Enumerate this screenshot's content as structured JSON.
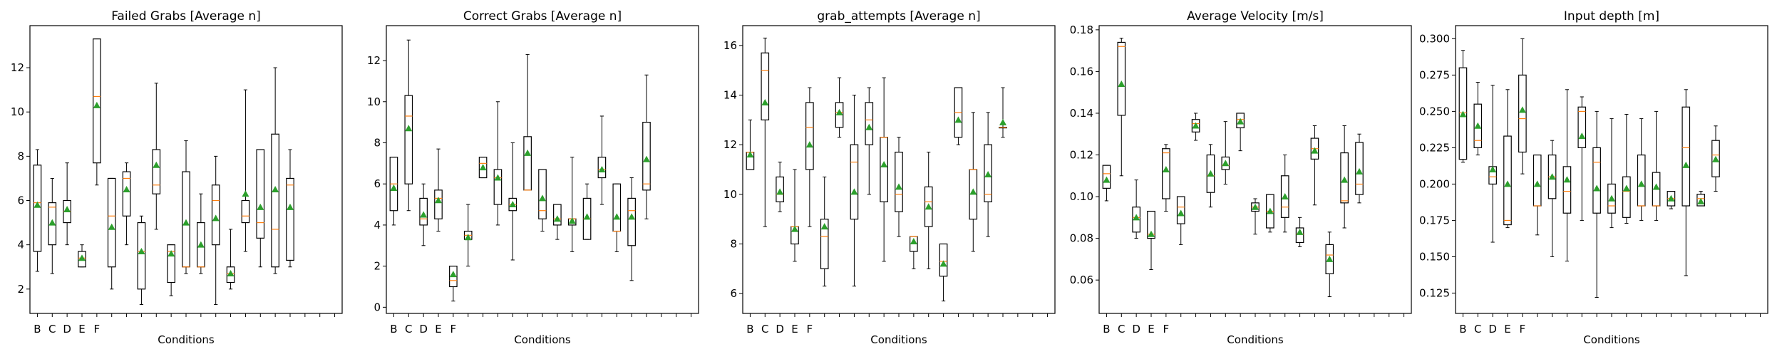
{
  "chart_data": [
    {
      "type": "box",
      "title": "Failed Grabs [Average n]",
      "xlabel": "Conditions",
      "ylabel": "",
      "ylim": [
        0.9,
        13.9
      ],
      "yticks": [
        2,
        4,
        6,
        8,
        10,
        12
      ],
      "categories": [
        "B",
        "C",
        "D",
        "E",
        "F",
        "",
        "",
        "",
        "",
        "",
        "",
        "",
        "",
        "",
        "",
        "",
        "",
        "",
        "",
        "",
        ""
      ],
      "boxes": [
        {
          "whislo": 2.8,
          "q1": 3.7,
          "med": 5.9,
          "q3": 7.6,
          "whishi": 8.3,
          "mean": 5.8
        },
        {
          "whislo": 2.7,
          "q1": 4.0,
          "med": 5.7,
          "q3": 5.9,
          "whishi": 7.0,
          "mean": 5.0
        },
        {
          "whislo": 4.0,
          "q1": 5.0,
          "med": 5.5,
          "q3": 6.0,
          "whishi": 7.7,
          "mean": 5.6
        },
        {
          "whislo": 3.0,
          "q1": 3.0,
          "med": 3.4,
          "q3": 3.7,
          "whishi": 4.0,
          "mean": 3.4
        },
        {
          "whislo": 6.7,
          "q1": 7.7,
          "med": 10.7,
          "q3": 13.3,
          "whishi": 13.3,
          "mean": 10.3
        },
        {
          "whislo": 2.0,
          "q1": 3.0,
          "med": 5.3,
          "q3": 7.0,
          "whishi": 7.0,
          "mean": 4.8
        },
        {
          "whislo": 4.0,
          "q1": 5.3,
          "med": 7.0,
          "q3": 7.3,
          "whishi": 7.7,
          "mean": 6.5
        },
        {
          "whislo": 1.3,
          "q1": 2.0,
          "med": 3.7,
          "q3": 5.0,
          "whishi": 5.3,
          "mean": 3.7
        },
        {
          "whislo": 4.7,
          "q1": 6.3,
          "med": 6.7,
          "q3": 8.3,
          "whishi": 11.3,
          "mean": 7.6
        },
        {
          "whislo": 1.7,
          "q1": 2.3,
          "med": 3.7,
          "q3": 4.0,
          "whishi": 4.0,
          "mean": 3.6
        },
        {
          "whislo": 2.7,
          "q1": 3.0,
          "med": 3.0,
          "q3": 7.3,
          "whishi": 8.7,
          "mean": 5.0
        },
        {
          "whislo": 2.7,
          "q1": 3.0,
          "med": 3.0,
          "q3": 5.0,
          "whishi": 6.3,
          "mean": 4.0
        },
        {
          "whislo": 1.3,
          "q1": 4.0,
          "med": 6.0,
          "q3": 6.7,
          "whishi": 8.0,
          "mean": 5.2
        },
        {
          "whislo": 2.0,
          "q1": 2.3,
          "med": 2.7,
          "q3": 3.0,
          "whishi": 4.7,
          "mean": 2.7
        },
        {
          "whislo": 3.7,
          "q1": 5.0,
          "med": 5.3,
          "q3": 6.0,
          "whishi": 11.0,
          "mean": 6.3
        },
        {
          "whislo": 3.0,
          "q1": 4.3,
          "med": 5.0,
          "q3": 8.3,
          "whishi": 8.3,
          "mean": 5.7
        },
        {
          "whislo": 2.7,
          "q1": 3.0,
          "med": 4.7,
          "q3": 9.0,
          "whishi": 12.0,
          "mean": 6.5
        },
        {
          "whislo": 3.0,
          "q1": 3.3,
          "med": 6.7,
          "q3": 7.0,
          "whishi": 8.3,
          "mean": 5.7
        }
      ]
    },
    {
      "type": "box",
      "title": "Correct Grabs [Average n]",
      "xlabel": "Conditions",
      "ylabel": "",
      "ylim": [
        -0.3,
        13.7
      ],
      "yticks": [
        0,
        2,
        4,
        6,
        8,
        10,
        12
      ],
      "categories": [
        "B",
        "C",
        "D",
        "E",
        "F",
        "",
        "",
        "",
        "",
        "",
        "",
        "",
        "",
        "",
        "",
        "",
        "",
        "",
        "",
        "",
        ""
      ],
      "boxes": [
        {
          "whislo": 4.0,
          "q1": 4.7,
          "med": 6.0,
          "q3": 7.3,
          "whishi": 7.3,
          "mean": 5.8
        },
        {
          "whislo": 4.7,
          "q1": 6.0,
          "med": 9.3,
          "q3": 10.3,
          "whishi": 13.0,
          "mean": 8.7
        },
        {
          "whislo": 3.0,
          "q1": 4.0,
          "med": 4.3,
          "q3": 5.3,
          "whishi": 6.0,
          "mean": 4.5
        },
        {
          "whislo": 3.7,
          "q1": 4.3,
          "med": 5.3,
          "q3": 5.7,
          "whishi": 7.7,
          "mean": 5.2
        },
        {
          "whislo": 0.3,
          "q1": 1.0,
          "med": 1.3,
          "q3": 2.0,
          "whishi": 2.0,
          "mean": 1.6
        },
        {
          "whislo": 2.0,
          "q1": 3.3,
          "med": 3.5,
          "q3": 3.7,
          "whishi": 5.0,
          "mean": 3.4
        },
        {
          "whislo": 6.3,
          "q1": 6.3,
          "med": 7.0,
          "q3": 7.3,
          "whishi": 7.3,
          "mean": 6.8
        },
        {
          "whislo": 4.0,
          "q1": 5.0,
          "med": 6.3,
          "q3": 6.7,
          "whishi": 10.0,
          "mean": 6.3
        },
        {
          "whislo": 2.3,
          "q1": 4.7,
          "med": 5.0,
          "q3": 5.3,
          "whishi": 8.0,
          "mean": 5.0
        },
        {
          "whislo": 5.7,
          "q1": 5.7,
          "med": 5.7,
          "q3": 8.3,
          "whishi": 12.3,
          "mean": 7.5
        },
        {
          "whislo": 3.7,
          "q1": 4.3,
          "med": 4.7,
          "q3": 6.7,
          "whishi": 6.7,
          "mean": 5.3
        },
        {
          "whislo": 3.3,
          "q1": 4.0,
          "med": 4.3,
          "q3": 5.0,
          "whishi": 5.0,
          "mean": 4.3
        },
        {
          "whislo": 2.7,
          "q1": 4.0,
          "med": 4.3,
          "q3": 4.3,
          "whishi": 7.3,
          "mean": 4.2
        },
        {
          "whislo": 3.3,
          "q1": 3.3,
          "med": 4.3,
          "q3": 5.3,
          "whishi": 6.0,
          "mean": 4.4
        },
        {
          "whislo": 5.0,
          "q1": 6.3,
          "med": 6.7,
          "q3": 7.3,
          "whishi": 9.3,
          "mean": 6.7
        },
        {
          "whislo": 2.7,
          "q1": 3.7,
          "med": 3.7,
          "q3": 6.0,
          "whishi": 6.0,
          "mean": 4.4
        },
        {
          "whislo": 1.3,
          "q1": 3.0,
          "med": 4.7,
          "q3": 5.3,
          "whishi": 6.3,
          "mean": 4.4
        },
        {
          "whislo": 4.3,
          "q1": 5.7,
          "med": 6.0,
          "q3": 9.0,
          "whishi": 11.3,
          "mean": 7.2
        }
      ]
    },
    {
      "type": "box",
      "title": "grab_attempts [Average n]",
      "xlabel": "Conditions",
      "ylabel": "",
      "ylim": [
        5.2,
        16.8
      ],
      "yticks": [
        6,
        8,
        10,
        12,
        14,
        16
      ],
      "categories": [
        "B",
        "C",
        "D",
        "E",
        "F",
        "",
        "",
        "",
        "",
        "",
        "",
        "",
        "",
        "",
        "",
        "",
        "",
        "",
        "",
        "",
        ""
      ],
      "boxes": [
        {
          "whislo": 11.0,
          "q1": 11.0,
          "med": 11.7,
          "q3": 11.7,
          "whishi": 13.0,
          "mean": 11.6
        },
        {
          "whislo": 8.7,
          "q1": 13.0,
          "med": 15.0,
          "q3": 15.7,
          "whishi": 16.3,
          "mean": 13.7
        },
        {
          "whislo": 9.3,
          "q1": 9.7,
          "med": 10.0,
          "q3": 10.7,
          "whishi": 11.3,
          "mean": 10.1
        },
        {
          "whislo": 7.3,
          "q1": 8.0,
          "med": 8.7,
          "q3": 8.7,
          "whishi": 11.0,
          "mean": 8.6
        },
        {
          "whislo": 8.7,
          "q1": 11.0,
          "med": 12.7,
          "q3": 13.7,
          "whishi": 14.3,
          "mean": 12.0
        },
        {
          "whislo": 6.3,
          "q1": 7.0,
          "med": 8.3,
          "q3": 9.0,
          "whishi": 10.7,
          "mean": 8.7
        },
        {
          "whislo": 12.3,
          "q1": 12.7,
          "med": 13.3,
          "q3": 13.7,
          "whishi": 14.7,
          "mean": 13.3
        },
        {
          "whislo": 6.3,
          "q1": 9.0,
          "med": 11.3,
          "q3": 12.0,
          "whishi": 14.0,
          "mean": 10.1
        },
        {
          "whislo": 10.0,
          "q1": 12.0,
          "med": 13.0,
          "q3": 13.7,
          "whishi": 14.3,
          "mean": 12.7
        },
        {
          "whislo": 7.3,
          "q1": 9.7,
          "med": 12.3,
          "q3": 12.3,
          "whishi": 14.7,
          "mean": 11.2
        },
        {
          "whislo": 8.3,
          "q1": 9.3,
          "med": 10.0,
          "q3": 11.7,
          "whishi": 12.3,
          "mean": 10.3
        },
        {
          "whislo": 7.0,
          "q1": 7.7,
          "med": 8.3,
          "q3": 8.3,
          "whishi": 8.3,
          "mean": 8.1
        },
        {
          "whislo": 7.0,
          "q1": 8.7,
          "med": 9.7,
          "q3": 10.3,
          "whishi": 11.7,
          "mean": 9.5
        },
        {
          "whislo": 5.7,
          "q1": 6.7,
          "med": 7.3,
          "q3": 8.0,
          "whishi": 8.0,
          "mean": 7.2
        },
        {
          "whislo": 12.0,
          "q1": 12.3,
          "med": 13.3,
          "q3": 14.3,
          "whishi": 14.3,
          "mean": 13.0
        },
        {
          "whislo": 7.7,
          "q1": 9.0,
          "med": 11.0,
          "q3": 11.0,
          "whishi": 13.3,
          "mean": 10.1
        },
        {
          "whislo": 8.3,
          "q1": 9.7,
          "med": 10.0,
          "q3": 12.0,
          "whishi": 13.3,
          "mean": 10.8
        },
        {
          "whislo": 12.3,
          "q1": 12.7,
          "med": 12.7,
          "q3": 12.7,
          "whishi": 14.3,
          "mean": 12.9
        }
      ]
    },
    {
      "type": "box",
      "title": "Average Velocity [m/s]",
      "xlabel": "Conditions",
      "ylabel": "",
      "ylim": [
        0.044,
        0.182
      ],
      "yticks": [
        0.06,
        0.08,
        0.1,
        0.12,
        0.14,
        0.16,
        0.18
      ],
      "categories": [
        "B",
        "C",
        "D",
        "E",
        "F",
        "",
        "",
        "",
        "",
        "",
        "",
        "",
        "",
        "",
        "",
        "",
        "",
        "",
        "",
        "",
        ""
      ],
      "boxes": [
        {
          "whislo": 0.098,
          "q1": 0.104,
          "med": 0.111,
          "q3": 0.115,
          "whishi": 0.115,
          "mean": 0.108
        },
        {
          "whislo": 0.11,
          "q1": 0.139,
          "med": 0.172,
          "q3": 0.174,
          "whishi": 0.176,
          "mean": 0.154
        },
        {
          "whislo": 0.08,
          "q1": 0.083,
          "med": 0.09,
          "q3": 0.095,
          "whishi": 0.108,
          "mean": 0.09
        },
        {
          "whislo": 0.065,
          "q1": 0.08,
          "med": 0.082,
          "q3": 0.093,
          "whishi": 0.093,
          "mean": 0.082
        },
        {
          "whislo": 0.093,
          "q1": 0.099,
          "med": 0.121,
          "q3": 0.123,
          "whishi": 0.125,
          "mean": 0.113
        },
        {
          "whislo": 0.077,
          "q1": 0.087,
          "med": 0.095,
          "q3": 0.1,
          "whishi": 0.1,
          "mean": 0.092
        },
        {
          "whislo": 0.127,
          "q1": 0.131,
          "med": 0.135,
          "q3": 0.137,
          "whishi": 0.14,
          "mean": 0.134
        },
        {
          "whislo": 0.095,
          "q1": 0.102,
          "med": 0.11,
          "q3": 0.12,
          "whishi": 0.125,
          "mean": 0.111
        },
        {
          "whislo": 0.106,
          "q1": 0.113,
          "med": 0.115,
          "q3": 0.119,
          "whishi": 0.136,
          "mean": 0.116
        },
        {
          "whislo": 0.122,
          "q1": 0.133,
          "med": 0.137,
          "q3": 0.14,
          "whishi": 0.14,
          "mean": 0.136
        },
        {
          "whislo": 0.082,
          "q1": 0.093,
          "med": 0.095,
          "q3": 0.097,
          "whishi": 0.099,
          "mean": 0.095
        },
        {
          "whislo": 0.083,
          "q1": 0.085,
          "med": 0.093,
          "q3": 0.101,
          "whishi": 0.101,
          "mean": 0.093
        },
        {
          "whislo": 0.083,
          "q1": 0.09,
          "med": 0.095,
          "q3": 0.11,
          "whishi": 0.12,
          "mean": 0.1
        },
        {
          "whislo": 0.076,
          "q1": 0.078,
          "med": 0.082,
          "q3": 0.085,
          "whishi": 0.09,
          "mean": 0.083
        },
        {
          "whislo": 0.096,
          "q1": 0.118,
          "med": 0.123,
          "q3": 0.128,
          "whishi": 0.134,
          "mean": 0.122
        },
        {
          "whislo": 0.052,
          "q1": 0.063,
          "med": 0.072,
          "q3": 0.077,
          "whishi": 0.083,
          "mean": 0.07
        },
        {
          "whislo": 0.085,
          "q1": 0.097,
          "med": 0.098,
          "q3": 0.121,
          "whishi": 0.134,
          "mean": 0.108
        },
        {
          "whislo": 0.097,
          "q1": 0.101,
          "med": 0.106,
          "q3": 0.126,
          "whishi": 0.13,
          "mean": 0.112
        }
      ]
    },
    {
      "type": "box",
      "title": "Input depth [m]",
      "xlabel": "Conditions",
      "ylabel": "",
      "ylim": [
        0.111,
        0.309
      ],
      "yticks": [
        0.125,
        0.15,
        0.175,
        0.2,
        0.225,
        0.25,
        0.275,
        0.3
      ],
      "categories": [
        "B",
        "C",
        "D",
        "E",
        "F",
        "",
        "",
        "",
        "",
        "",
        "",
        "",
        "",
        "",
        "",
        "",
        "",
        "",
        "",
        "",
        ""
      ],
      "boxes": [
        {
          "whislo": 0.215,
          "q1": 0.217,
          "med": 0.249,
          "q3": 0.28,
          "whishi": 0.292,
          "mean": 0.248
        },
        {
          "whislo": 0.22,
          "q1": 0.225,
          "med": 0.23,
          "q3": 0.255,
          "whishi": 0.27,
          "mean": 0.24
        },
        {
          "whislo": 0.16,
          "q1": 0.2,
          "med": 0.205,
          "q3": 0.212,
          "whishi": 0.268,
          "mean": 0.21
        },
        {
          "whislo": 0.17,
          "q1": 0.172,
          "med": 0.175,
          "q3": 0.233,
          "whishi": 0.265,
          "mean": 0.2
        },
        {
          "whislo": 0.207,
          "q1": 0.222,
          "med": 0.245,
          "q3": 0.275,
          "whishi": 0.3,
          "mean": 0.251
        },
        {
          "whislo": 0.165,
          "q1": 0.185,
          "med": 0.185,
          "q3": 0.22,
          "whishi": 0.22,
          "mean": 0.2
        },
        {
          "whislo": 0.15,
          "q1": 0.19,
          "med": 0.205,
          "q3": 0.22,
          "whishi": 0.23,
          "mean": 0.205
        },
        {
          "whislo": 0.147,
          "q1": 0.18,
          "med": 0.195,
          "q3": 0.212,
          "whishi": 0.265,
          "mean": 0.203
        },
        {
          "whislo": 0.175,
          "q1": 0.225,
          "med": 0.25,
          "q3": 0.253,
          "whishi": 0.26,
          "mean": 0.233
        },
        {
          "whislo": 0.122,
          "q1": 0.18,
          "med": 0.215,
          "q3": 0.225,
          "whishi": 0.25,
          "mean": 0.197
        },
        {
          "whislo": 0.17,
          "q1": 0.18,
          "med": 0.185,
          "q3": 0.2,
          "whishi": 0.245,
          "mean": 0.19
        },
        {
          "whislo": 0.173,
          "q1": 0.177,
          "med": 0.195,
          "q3": 0.205,
          "whishi": 0.248,
          "mean": 0.197
        },
        {
          "whislo": 0.175,
          "q1": 0.185,
          "med": 0.185,
          "q3": 0.22,
          "whishi": 0.245,
          "mean": 0.2
        },
        {
          "whislo": 0.175,
          "q1": 0.185,
          "med": 0.185,
          "q3": 0.208,
          "whishi": 0.25,
          "mean": 0.198
        },
        {
          "whislo": 0.183,
          "q1": 0.185,
          "med": 0.19,
          "q3": 0.195,
          "whishi": 0.195,
          "mean": 0.19
        },
        {
          "whislo": 0.137,
          "q1": 0.185,
          "med": 0.225,
          "q3": 0.253,
          "whishi": 0.265,
          "mean": 0.213
        },
        {
          "whislo": 0.185,
          "q1": 0.185,
          "med": 0.19,
          "q3": 0.193,
          "whishi": 0.195,
          "mean": 0.188
        },
        {
          "whislo": 0.195,
          "q1": 0.205,
          "med": 0.22,
          "q3": 0.23,
          "whishi": 0.24,
          "mean": 0.217
        }
      ]
    }
  ],
  "colors": {
    "box": "#000000",
    "median": "#ff7f0e",
    "mean_marker": "#2ca02c"
  }
}
